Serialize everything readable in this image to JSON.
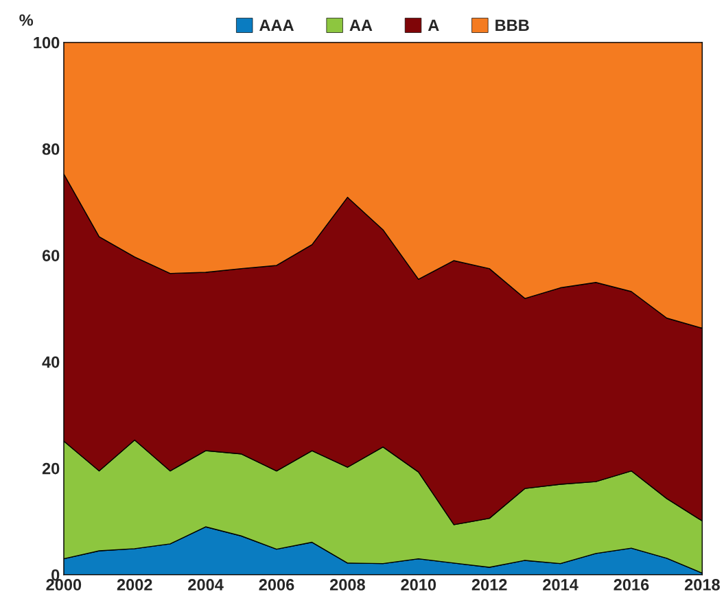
{
  "chart_data": {
    "type": "area",
    "stacked": true,
    "ylabel": "%",
    "x": [
      2000,
      2001,
      2002,
      2003,
      2004,
      2005,
      2006,
      2007,
      2008,
      2009,
      2010,
      2011,
      2012,
      2013,
      2014,
      2015,
      2016,
      2017,
      2018
    ],
    "series": [
      {
        "name": "AAA",
        "color": "#0a7cc1",
        "values": [
          3.0,
          4.5,
          4.9,
          5.8,
          9.0,
          7.3,
          4.8,
          6.1,
          2.2,
          2.1,
          3.0,
          2.2,
          1.4,
          2.7,
          2.1,
          4.0,
          5.0,
          3.1,
          0.3
        ]
      },
      {
        "name": "AA",
        "color": "#8dc63f",
        "values": [
          22.1,
          15.0,
          20.4,
          13.7,
          14.3,
          15.4,
          14.7,
          17.2,
          18.0,
          21.9,
          16.3,
          7.2,
          9.2,
          13.5,
          14.9,
          13.5,
          14.5,
          11.2,
          9.8
        ]
      },
      {
        "name": "A",
        "color": "#7f0508",
        "values": [
          50.2,
          44.0,
          34.4,
          37.1,
          33.5,
          34.8,
          38.6,
          38.7,
          50.7,
          40.8,
          36.2,
          49.6,
          46.9,
          35.7,
          36.9,
          37.4,
          33.7,
          33.9,
          36.2
        ]
      },
      {
        "name": "BBB",
        "color": "#f47b20",
        "values": [
          24.7,
          36.5,
          40.3,
          43.4,
          43.2,
          42.5,
          41.9,
          38.0,
          29.1,
          35.2,
          44.5,
          41.0,
          42.5,
          48.1,
          46.1,
          45.1,
          46.8,
          51.8,
          53.7
        ]
      }
    ],
    "xlim": [
      2000,
      2018
    ],
    "xticks": [
      2000,
      2002,
      2004,
      2006,
      2008,
      2010,
      2012,
      2014,
      2016,
      2018
    ],
    "ylim": [
      0,
      100
    ],
    "yticks": [
      0,
      20,
      40,
      60,
      80,
      100
    ],
    "legend": "top"
  }
}
